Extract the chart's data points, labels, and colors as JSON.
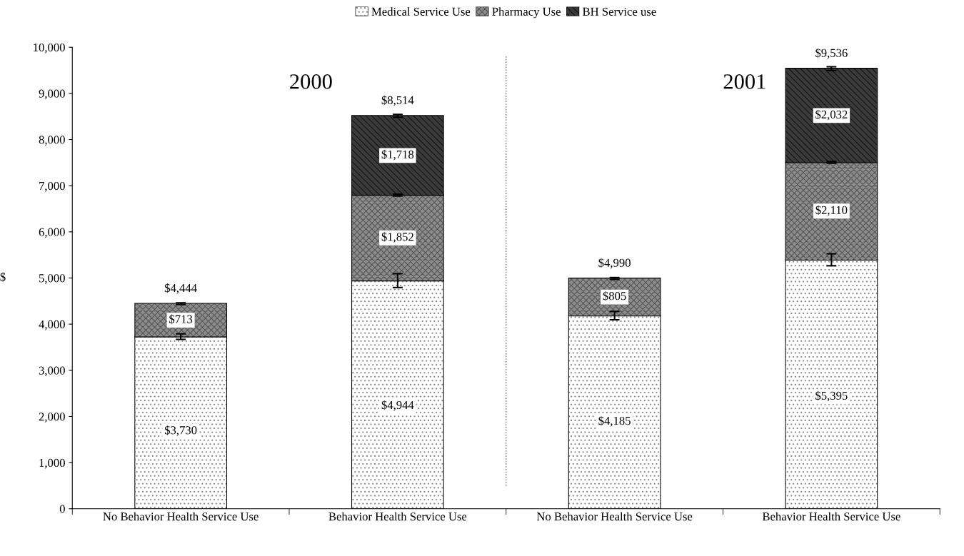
{
  "chart_data": {
    "type": "bar",
    "stacked": true,
    "ylabel": "$",
    "categories": [
      "No Behavior Health Service Use",
      "Behavior Health Service Use",
      "No Behavior Health Service Use",
      "Behavior Health Service Use"
    ],
    "series": [
      {
        "name": "Medical Service Use",
        "color": "#ffffff",
        "values": [
          3730,
          4944,
          4185,
          5395
        ],
        "value_labels": [
          "$3,730",
          "$4,944",
          "$4,185",
          "$5,395"
        ],
        "errors": [
          60,
          150,
          90,
          130
        ]
      },
      {
        "name": "Pharmacy Use",
        "color": "#8c8c8c",
        "values": [
          713,
          1852,
          805,
          2110
        ],
        "value_labels": [
          "$713",
          "$1,852",
          "$805",
          "$2,110"
        ],
        "errors": [
          20,
          20,
          20,
          20
        ]
      },
      {
        "name": "BH Service use",
        "color": "#3a3a3a",
        "values": [
          null,
          1718,
          null,
          2032
        ],
        "value_labels": [
          null,
          "$1,718",
          null,
          "$2,032"
        ],
        "errors": [
          null,
          30,
          null,
          40
        ]
      }
    ],
    "totals": [
      "$4,444",
      "$8,514",
      "$4,990",
      "$9,536"
    ],
    "annotations": [
      "2000",
      "2001"
    ],
    "ylim": [
      0,
      10000
    ],
    "yticks": [
      0,
      {
        "value": 1000,
        "label": "1,000"
      },
      {
        "value": 2000,
        "label": "2,000"
      },
      {
        "value": 3000,
        "label": "3,000"
      },
      {
        "value": 4000,
        "label": "4,000"
      },
      {
        "value": 5000,
        "label": "5,000"
      },
      {
        "value": 6000,
        "label": "6,000"
      },
      {
        "value": 7000,
        "label": "7,000"
      },
      {
        "value": 8000,
        "label": "8,000"
      },
      {
        "value": 9000,
        "label": "9,000"
      },
      {
        "value": 10000,
        "label": "10,000"
      }
    ],
    "grid": false,
    "legend": "top"
  }
}
